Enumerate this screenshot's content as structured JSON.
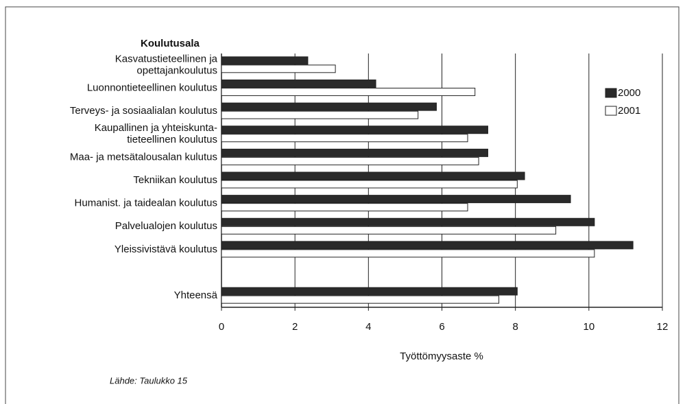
{
  "chart_data": {
    "type": "bar",
    "orientation": "horizontal",
    "y_axis_title": "Koulutusala",
    "x_axis_label": "Työttömyysaste %",
    "source": "Lähde: Taulukko 15",
    "categories": [
      "Kasvatustieteellinen ja\nopettajankoulutus",
      "Luonnontieteellinen koulutus",
      "Terveys- ja sosiaalialan  koulutus",
      "Kaupallinen ja yhteiskunta-\ntieteellinen koulutus",
      "Maa- ja metsätalousalan kulutus",
      "Tekniikan koulutus",
      "Humanist. ja taidealan koulutus",
      "Palvelualojen koulutus",
      "Yleissivistävä koulutus",
      null,
      "Yhteensä"
    ],
    "series": [
      {
        "name": "2000",
        "color": "#2a2a2a",
        "values": [
          2.35,
          4.2,
          5.85,
          7.25,
          7.25,
          8.25,
          9.5,
          10.15,
          11.2,
          null,
          8.05
        ]
      },
      {
        "name": "2001",
        "color": "#ffffff",
        "values": [
          3.1,
          6.9,
          5.35,
          6.7,
          7.0,
          8.05,
          6.7,
          9.1,
          10.15,
          null,
          7.55
        ]
      }
    ],
    "xlim": [
      0,
      12
    ],
    "xticks": [
      0,
      2,
      4,
      6,
      8,
      10,
      12
    ],
    "grid": true,
    "legend": "top-right"
  }
}
